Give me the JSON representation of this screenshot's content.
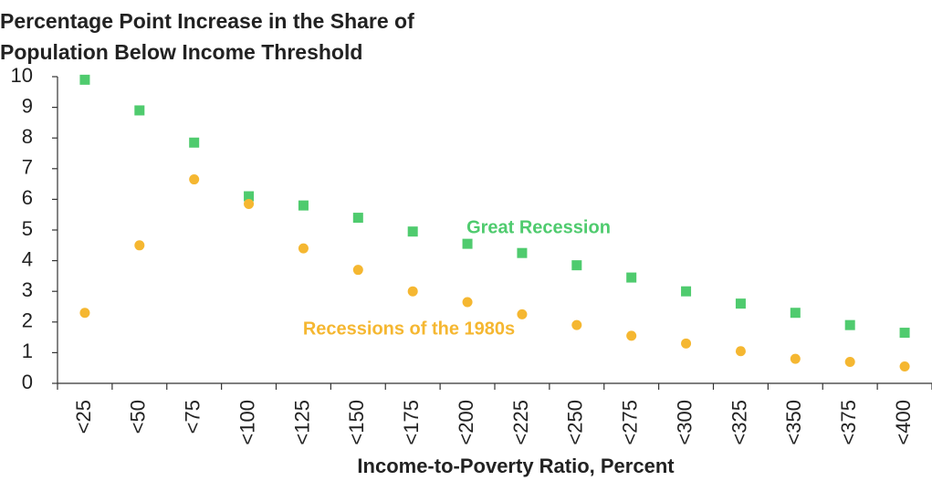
{
  "chart_data": {
    "type": "scatter",
    "title": "Percentage Point Increase in the Share of Population Below Income Threshold",
    "x_label": "Income-to-Poverty Ratio, Percent",
    "categories": [
      "<25",
      "<50",
      "<75",
      "<100",
      "<125",
      "<150",
      "<175",
      "<200",
      "<225",
      "<250",
      "<275",
      "<300",
      "<325",
      "<350",
      "<375",
      "<400"
    ],
    "series": [
      {
        "name": "Great Recession",
        "color": "#4fcb6e",
        "marker": "square",
        "values": [
          9.9,
          8.9,
          7.85,
          6.1,
          5.8,
          5.4,
          4.95,
          4.55,
          4.25,
          3.85,
          3.45,
          3.0,
          2.6,
          2.3,
          1.9,
          1.65
        ]
      },
      {
        "name": "Recessions of the 1980s",
        "color": "#f5b731",
        "marker": "circle",
        "values": [
          2.3,
          4.5,
          6.65,
          5.85,
          4.4,
          3.7,
          3.0,
          2.65,
          2.25,
          1.9,
          1.55,
          1.3,
          1.05,
          0.8,
          0.7,
          0.55
        ]
      }
    ],
    "ylim": [
      0,
      10
    ],
    "yticks": [
      0,
      1,
      2,
      3,
      4,
      5,
      6,
      7,
      8,
      9,
      10
    ]
  }
}
